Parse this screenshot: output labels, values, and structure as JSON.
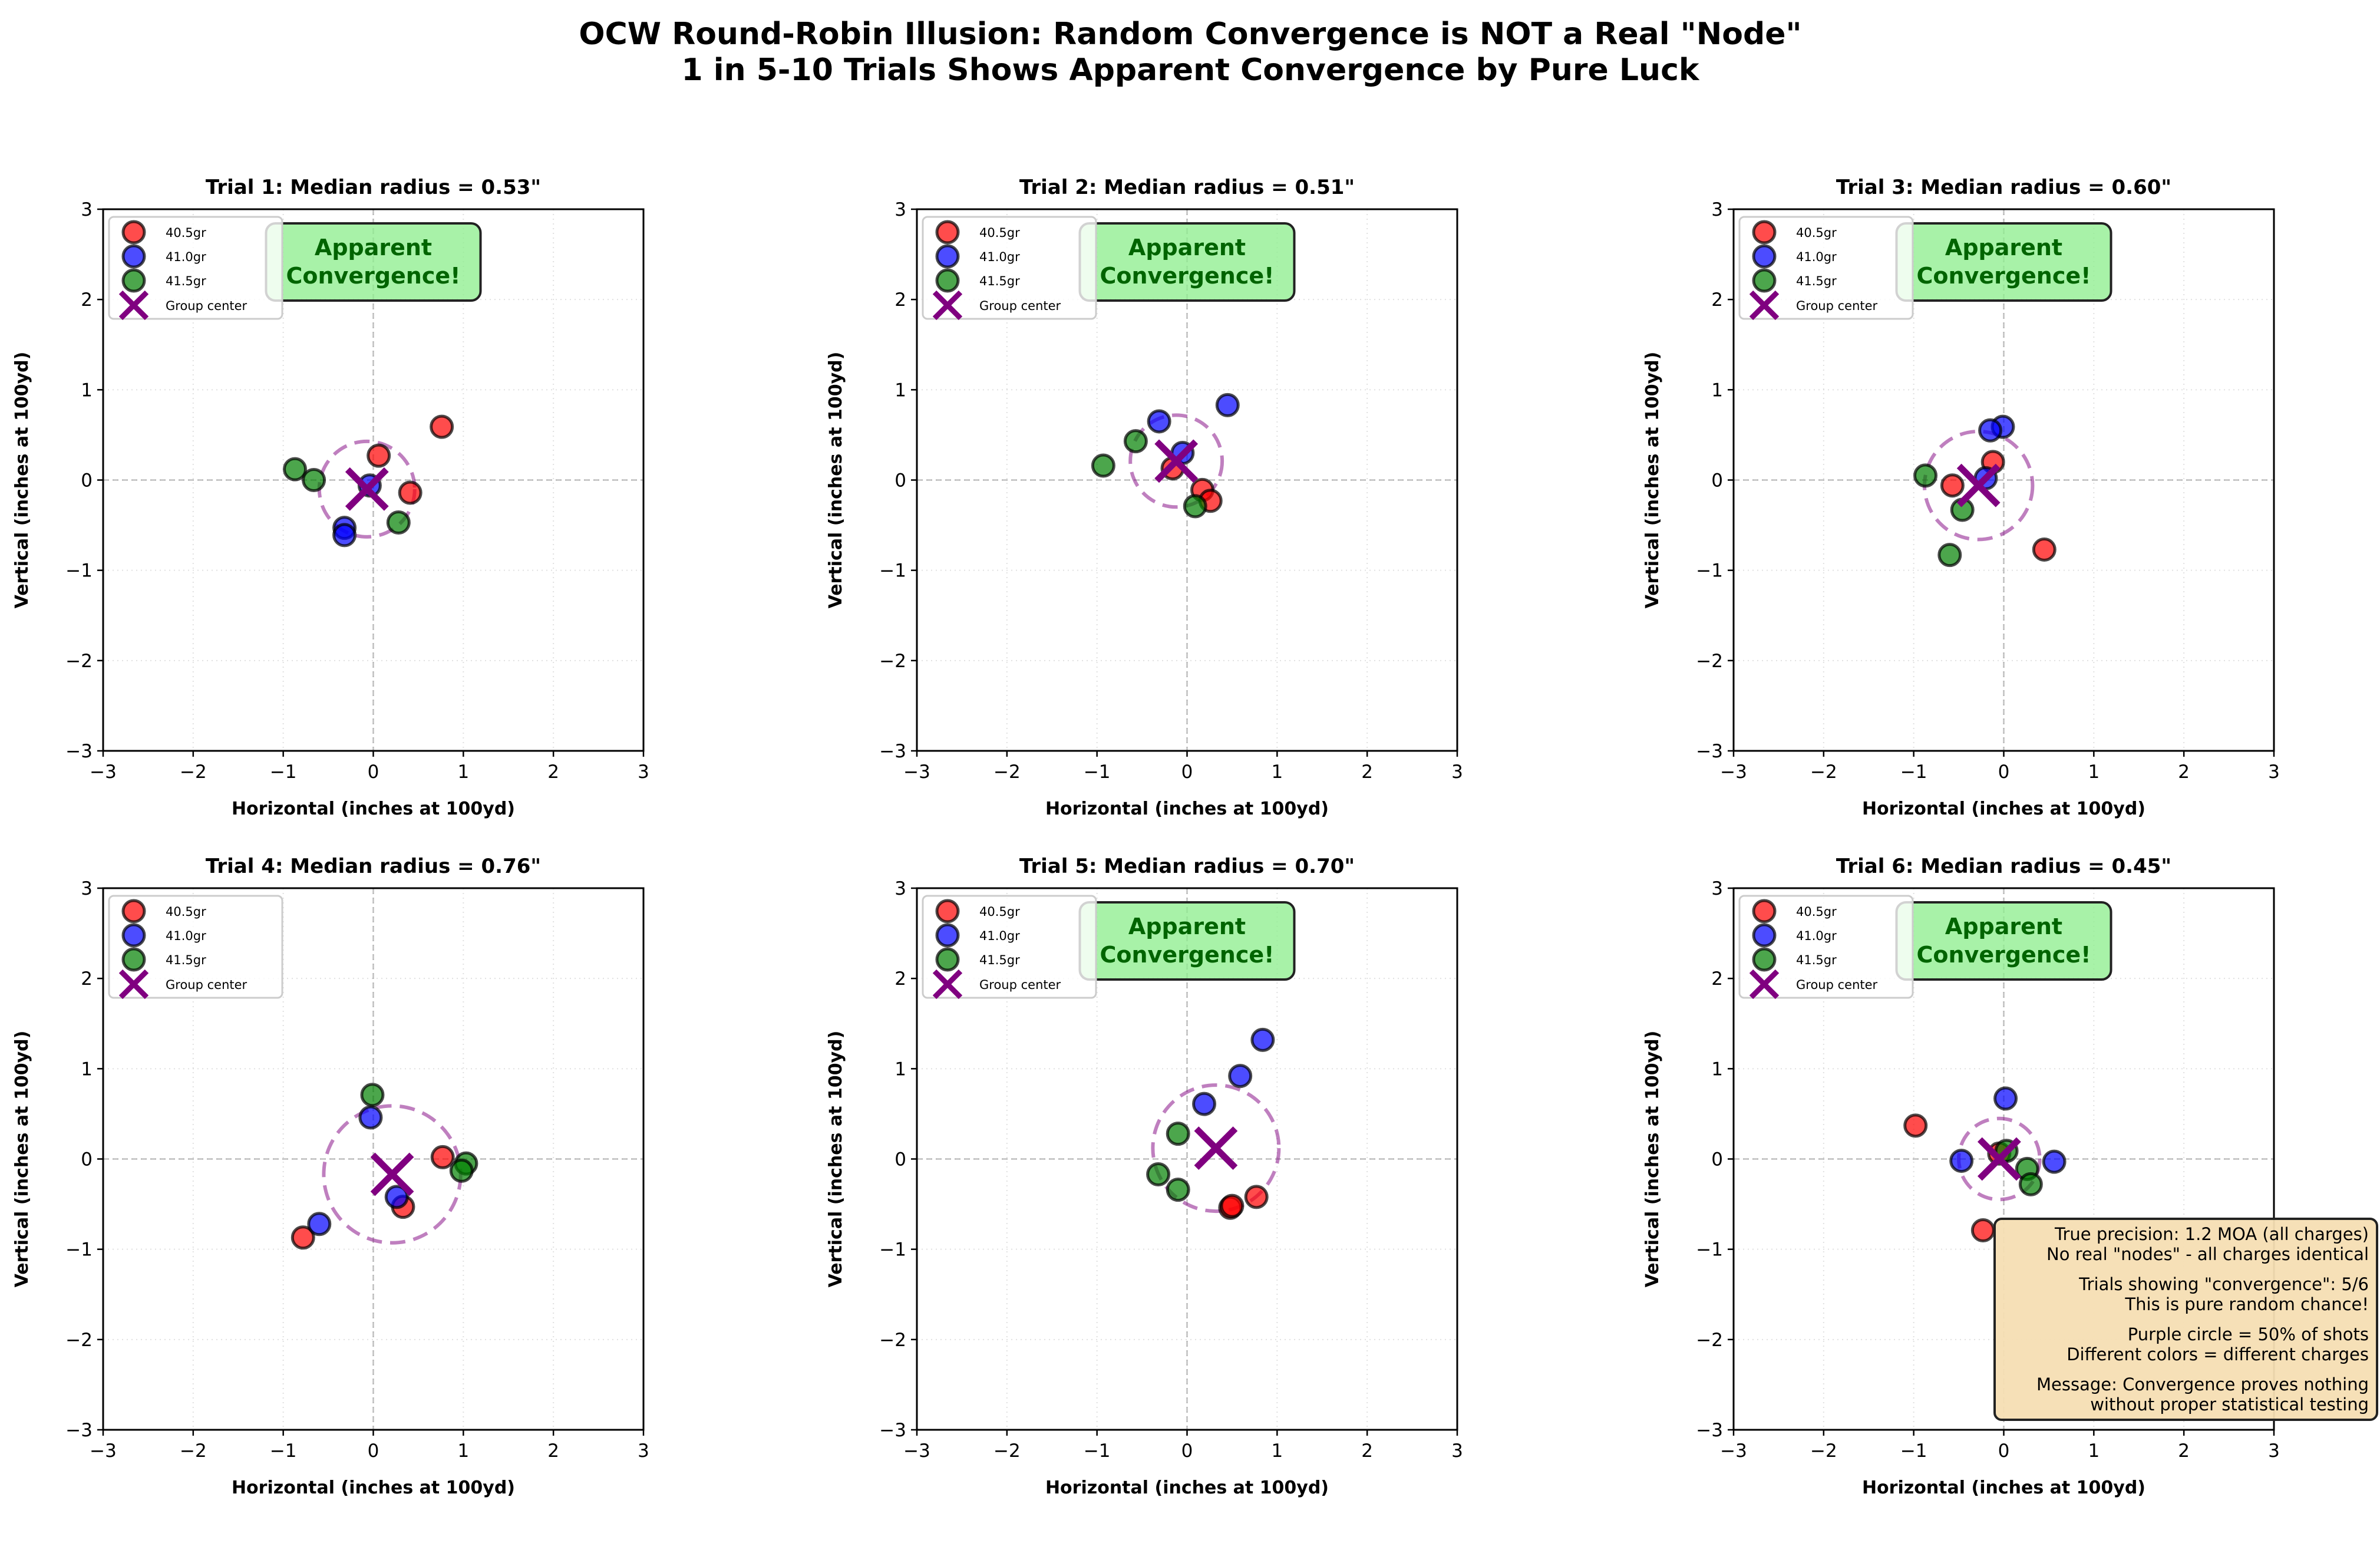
{
  "title_lines": [
    "OCW Round-Robin Illusion: Random Convergence is NOT a Real \"Node\"",
    "1 in 5-10 Trials Shows Apparent Convergence by Pure Luck"
  ],
  "legend": {
    "entries": [
      "40.5gr",
      "41.0gr",
      "41.5gr",
      "Group center"
    ],
    "placement": "upper-left"
  },
  "colors": {
    "40.5gr": "#ff0000",
    "41.0gr": "#0000ff",
    "41.5gr": "#008000",
    "group_center": "#800080",
    "convergence_box": "#90ee90",
    "convergence_text": "#006400",
    "note_box": "#f5deb3"
  },
  "note_lines": [
    "True precision: 1.2 MOA (all charges)",
    "No real \"nodes\" - all charges identical",
    "",
    "Trials showing \"convergence\": 5/6",
    "This is pure random chance!",
    "",
    "Purple circle = 50% of shots",
    "Different colors = different charges",
    "",
    "Message: Convergence proves nothing",
    "without proper statistical testing"
  ],
  "chart_data": [
    {
      "type": "scatter",
      "title": "Trial 1: Median radius = 0.53\"",
      "xlabel": "Horizontal (inches at 100yd)",
      "ylabel": "Vertical (inches at 100yd)",
      "xlim": [
        -3,
        3
      ],
      "ylim": [
        -3,
        3
      ],
      "xticks": [
        "−3",
        "−2",
        "−1",
        "0",
        "1",
        "2",
        "3"
      ],
      "yticks": [
        "−3",
        "−2",
        "−1",
        "0",
        "1",
        "2",
        "3"
      ],
      "grid": true,
      "median_radius": 0.53,
      "group_center": [
        -0.07,
        -0.1
      ],
      "annotation": "Apparent\nConvergence!",
      "series": [
        {
          "name": "40.5gr",
          "points": [
            [
              0.76,
              0.59
            ],
            [
              0.06,
              0.27
            ],
            [
              0.41,
              -0.14
            ]
          ]
        },
        {
          "name": "41.0gr",
          "points": [
            [
              -0.04,
              -0.06
            ],
            [
              -0.32,
              -0.53
            ],
            [
              -0.32,
              -0.61
            ]
          ]
        },
        {
          "name": "41.5gr",
          "points": [
            [
              -0.87,
              0.12
            ],
            [
              -0.66,
              0.0
            ],
            [
              0.28,
              -0.47
            ]
          ]
        }
      ]
    },
    {
      "type": "scatter",
      "title": "Trial 2: Median radius = 0.51\"",
      "xlabel": "Horizontal (inches at 100yd)",
      "ylabel": "Vertical (inches at 100yd)",
      "xlim": [
        -3,
        3
      ],
      "ylim": [
        -3,
        3
      ],
      "xticks": [
        "−3",
        "−2",
        "−1",
        "0",
        "1",
        "2",
        "3"
      ],
      "yticks": [
        "−3",
        "−2",
        "−1",
        "0",
        "1",
        "2",
        "3"
      ],
      "grid": true,
      "median_radius": 0.51,
      "group_center": [
        -0.12,
        0.21
      ],
      "annotation": "Apparent\nConvergence!",
      "series": [
        {
          "name": "40.5gr",
          "points": [
            [
              -0.16,
              0.13
            ],
            [
              0.17,
              -0.11
            ],
            [
              0.26,
              -0.23
            ]
          ]
        },
        {
          "name": "41.0gr",
          "points": [
            [
              0.45,
              0.83
            ],
            [
              -0.31,
              0.65
            ],
            [
              -0.05,
              0.3
            ]
          ]
        },
        {
          "name": "41.5gr",
          "points": [
            [
              -0.93,
              0.16
            ],
            [
              -0.57,
              0.43
            ],
            [
              0.09,
              -0.29
            ]
          ]
        }
      ]
    },
    {
      "type": "scatter",
      "title": "Trial 3: Median radius = 0.60\"",
      "xlabel": "Horizontal (inches at 100yd)",
      "ylabel": "Vertical (inches at 100yd)",
      "xlim": [
        -3,
        3
      ],
      "ylim": [
        -3,
        3
      ],
      "xticks": [
        "−3",
        "−2",
        "−1",
        "0",
        "1",
        "2",
        "3"
      ],
      "yticks": [
        "−3",
        "−2",
        "−1",
        "0",
        "1",
        "2",
        "3"
      ],
      "grid": true,
      "median_radius": 0.6,
      "group_center": [
        -0.28,
        -0.06
      ],
      "annotation": "Apparent\nConvergence!",
      "series": [
        {
          "name": "40.5gr",
          "points": [
            [
              -0.12,
              0.2
            ],
            [
              -0.57,
              -0.06
            ],
            [
              0.45,
              -0.77
            ]
          ]
        },
        {
          "name": "41.0gr",
          "points": [
            [
              -0.01,
              0.59
            ],
            [
              -0.15,
              0.55
            ],
            [
              -0.2,
              0.02
            ]
          ]
        },
        {
          "name": "41.5gr",
          "points": [
            [
              -0.87,
              0.05
            ],
            [
              -0.46,
              -0.33
            ],
            [
              -0.6,
              -0.83
            ]
          ]
        }
      ]
    },
    {
      "type": "scatter",
      "title": "Trial 4: Median radius = 0.76\"",
      "xlabel": "Horizontal (inches at 100yd)",
      "ylabel": "Vertical (inches at 100yd)",
      "xlim": [
        -3,
        3
      ],
      "ylim": [
        -3,
        3
      ],
      "xticks": [
        "−3",
        "−2",
        "−1",
        "0",
        "1",
        "2",
        "3"
      ],
      "yticks": [
        "−3",
        "−2",
        "−1",
        "0",
        "1",
        "2",
        "3"
      ],
      "grid": true,
      "median_radius": 0.76,
      "group_center": [
        0.21,
        -0.17
      ],
      "annotation": "",
      "series": [
        {
          "name": "40.5gr",
          "points": [
            [
              0.77,
              0.02
            ],
            [
              0.33,
              -0.53
            ],
            [
              -0.78,
              -0.87
            ]
          ]
        },
        {
          "name": "41.0gr",
          "points": [
            [
              -0.03,
              0.46
            ],
            [
              0.26,
              -0.42
            ],
            [
              -0.6,
              -0.72
            ]
          ]
        },
        {
          "name": "41.5gr",
          "points": [
            [
              -0.01,
              0.71
            ],
            [
              1.03,
              -0.05
            ],
            [
              0.98,
              -0.13
            ]
          ]
        }
      ]
    },
    {
      "type": "scatter",
      "title": "Trial 5: Median radius = 0.70\"",
      "xlabel": "Horizontal (inches at 100yd)",
      "ylabel": "Vertical (inches at 100yd)",
      "xlim": [
        -3,
        3
      ],
      "ylim": [
        -3,
        3
      ],
      "xticks": [
        "−3",
        "−2",
        "−1",
        "0",
        "1",
        "2",
        "3"
      ],
      "yticks": [
        "−3",
        "−2",
        "−1",
        "0",
        "1",
        "2",
        "3"
      ],
      "grid": true,
      "median_radius": 0.7,
      "group_center": [
        0.32,
        0.12
      ],
      "annotation": "Apparent\nConvergence!",
      "series": [
        {
          "name": "40.5gr",
          "points": [
            [
              0.77,
              -0.42
            ],
            [
              0.48,
              -0.54
            ],
            [
              0.5,
              -0.52
            ]
          ]
        },
        {
          "name": "41.0gr",
          "points": [
            [
              0.84,
              1.32
            ],
            [
              0.59,
              0.92
            ],
            [
              0.19,
              0.61
            ]
          ]
        },
        {
          "name": "41.5gr",
          "points": [
            [
              -0.1,
              0.28
            ],
            [
              -0.32,
              -0.17
            ],
            [
              -0.1,
              -0.34
            ]
          ]
        }
      ]
    },
    {
      "type": "scatter",
      "title": "Trial 6: Median radius = 0.45\"",
      "xlabel": "Horizontal (inches at 100yd)",
      "ylabel": "Vertical (inches at 100yd)",
      "xlim": [
        -3,
        3
      ],
      "ylim": [
        -3,
        3
      ],
      "xticks": [
        "−3",
        "−2",
        "−1",
        "0",
        "1",
        "2",
        "3"
      ],
      "yticks": [
        "−3",
        "−2",
        "−1",
        "0",
        "1",
        "2",
        "3"
      ],
      "grid": true,
      "median_radius": 0.45,
      "group_center": [
        -0.05,
        0.0
      ],
      "annotation": "Apparent\nConvergence!",
      "series": [
        {
          "name": "40.5gr",
          "points": [
            [
              -0.98,
              0.37
            ],
            [
              -0.23,
              -0.79
            ],
            [
              -0.05,
              0.06
            ]
          ]
        },
        {
          "name": "41.0gr",
          "points": [
            [
              0.02,
              0.67
            ],
            [
              -0.47,
              -0.02
            ],
            [
              0.56,
              -0.03
            ]
          ]
        },
        {
          "name": "41.5gr",
          "points": [
            [
              0.03,
              0.09
            ],
            [
              0.26,
              -0.11
            ],
            [
              0.3,
              -0.28
            ]
          ]
        }
      ]
    }
  ]
}
